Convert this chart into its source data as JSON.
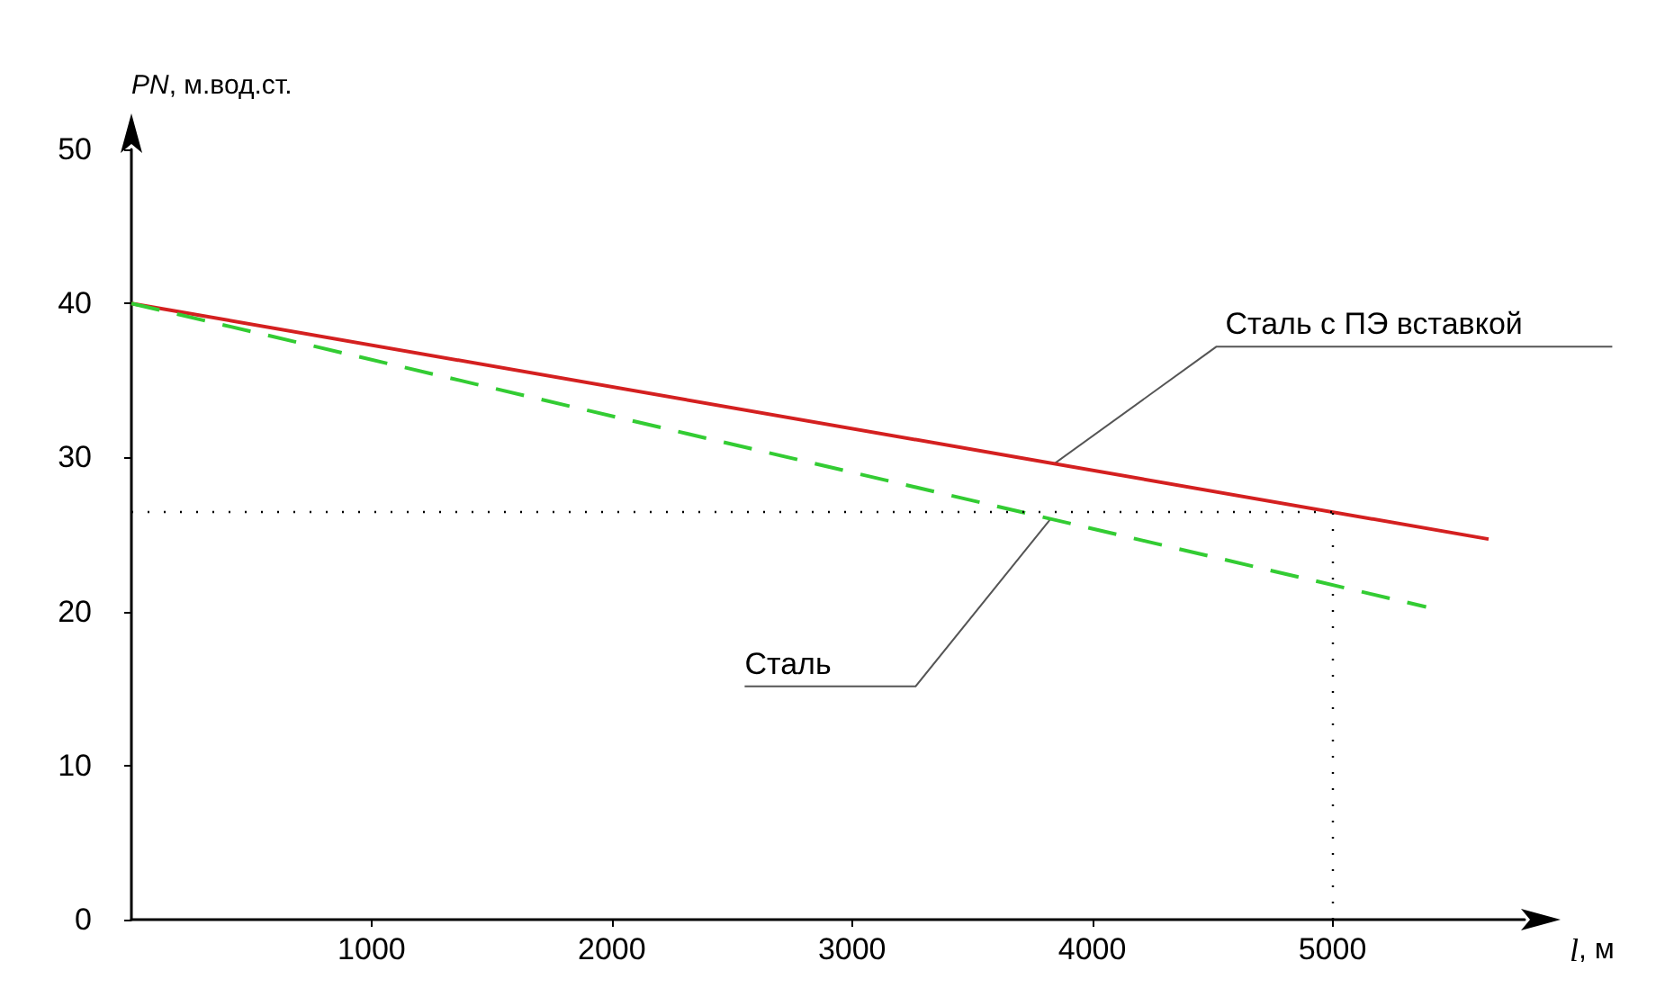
{
  "chart_data": {
    "type": "line",
    "xlabel": "l, м",
    "ylabel": "PN, м.вод.ст.",
    "xlim": [
      0,
      5800
    ],
    "ylim": [
      0,
      50
    ],
    "xticks": [
      1000,
      2000,
      3000,
      4000,
      5000
    ],
    "yticks": [
      0,
      10,
      20,
      30,
      40,
      50
    ],
    "series": [
      {
        "name": "Сталь с ПЭ вставкой",
        "color": "#d42020",
        "x": [
          0,
          5650
        ],
        "values": [
          40,
          24.7
        ],
        "line_style": "solid"
      },
      {
        "name": "Сталь",
        "color": "#33cc33",
        "x": [
          0,
          5390
        ],
        "values": [
          40,
          20.3
        ],
        "line_style": "dashed"
      }
    ],
    "ref_lines": [
      {
        "axis": "y",
        "value": 26.5,
        "color": "#000000",
        "line_style": "dotted"
      },
      {
        "axis": "x",
        "value": 5000,
        "color": "#000000",
        "line_style": "dotted"
      }
    ],
    "grid": false,
    "legend": false,
    "marker": "none"
  }
}
